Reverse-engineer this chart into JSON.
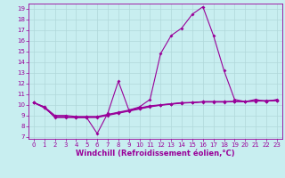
{
  "title": "",
  "xlabel": "Windchill (Refroidissement éolien,°C)",
  "ylabel": "",
  "xlim": [
    -0.5,
    23.5
  ],
  "ylim": [
    6.8,
    19.5
  ],
  "yticks": [
    7,
    8,
    9,
    10,
    11,
    12,
    13,
    14,
    15,
    16,
    17,
    18,
    19
  ],
  "xticks": [
    0,
    1,
    2,
    3,
    4,
    5,
    6,
    7,
    8,
    9,
    10,
    11,
    12,
    13,
    14,
    15,
    16,
    17,
    18,
    19,
    20,
    21,
    22,
    23
  ],
  "bg_color": "#c8eef0",
  "grid_color": "#b0d8da",
  "line_color": "#990099",
  "line1_y": [
    10.2,
    9.8,
    8.8,
    8.8,
    8.8,
    8.8,
    7.3,
    9.2,
    12.2,
    9.5,
    9.8,
    10.5,
    14.8,
    16.5,
    17.2,
    18.5,
    19.2,
    16.5,
    13.2,
    10.5,
    10.3,
    10.5,
    10.3,
    10.5
  ],
  "line2_y": [
    10.2,
    9.8,
    9.0,
    9.0,
    8.9,
    8.9,
    8.9,
    9.1,
    9.3,
    9.5,
    9.7,
    9.9,
    10.0,
    10.1,
    10.2,
    10.2,
    10.3,
    10.3,
    10.3,
    10.3,
    10.3,
    10.4,
    10.4,
    10.4
  ],
  "line3_y": [
    10.2,
    9.7,
    8.9,
    8.9,
    8.8,
    8.8,
    8.8,
    9.0,
    9.2,
    9.4,
    9.6,
    9.8,
    9.95,
    10.05,
    10.15,
    10.2,
    10.25,
    10.25,
    10.25,
    10.3,
    10.3,
    10.35,
    10.35,
    10.4
  ],
  "line4_y": [
    10.2,
    9.75,
    8.85,
    8.85,
    8.85,
    8.85,
    8.85,
    9.05,
    9.25,
    9.45,
    9.65,
    9.85,
    9.975,
    10.075,
    10.175,
    10.21,
    10.275,
    10.275,
    10.275,
    10.3,
    10.3,
    10.35,
    10.35,
    10.4
  ],
  "marker": "D",
  "markersize": 2.0,
  "linewidth": 0.8,
  "tick_fontsize": 5.0,
  "label_fontsize": 6.0
}
